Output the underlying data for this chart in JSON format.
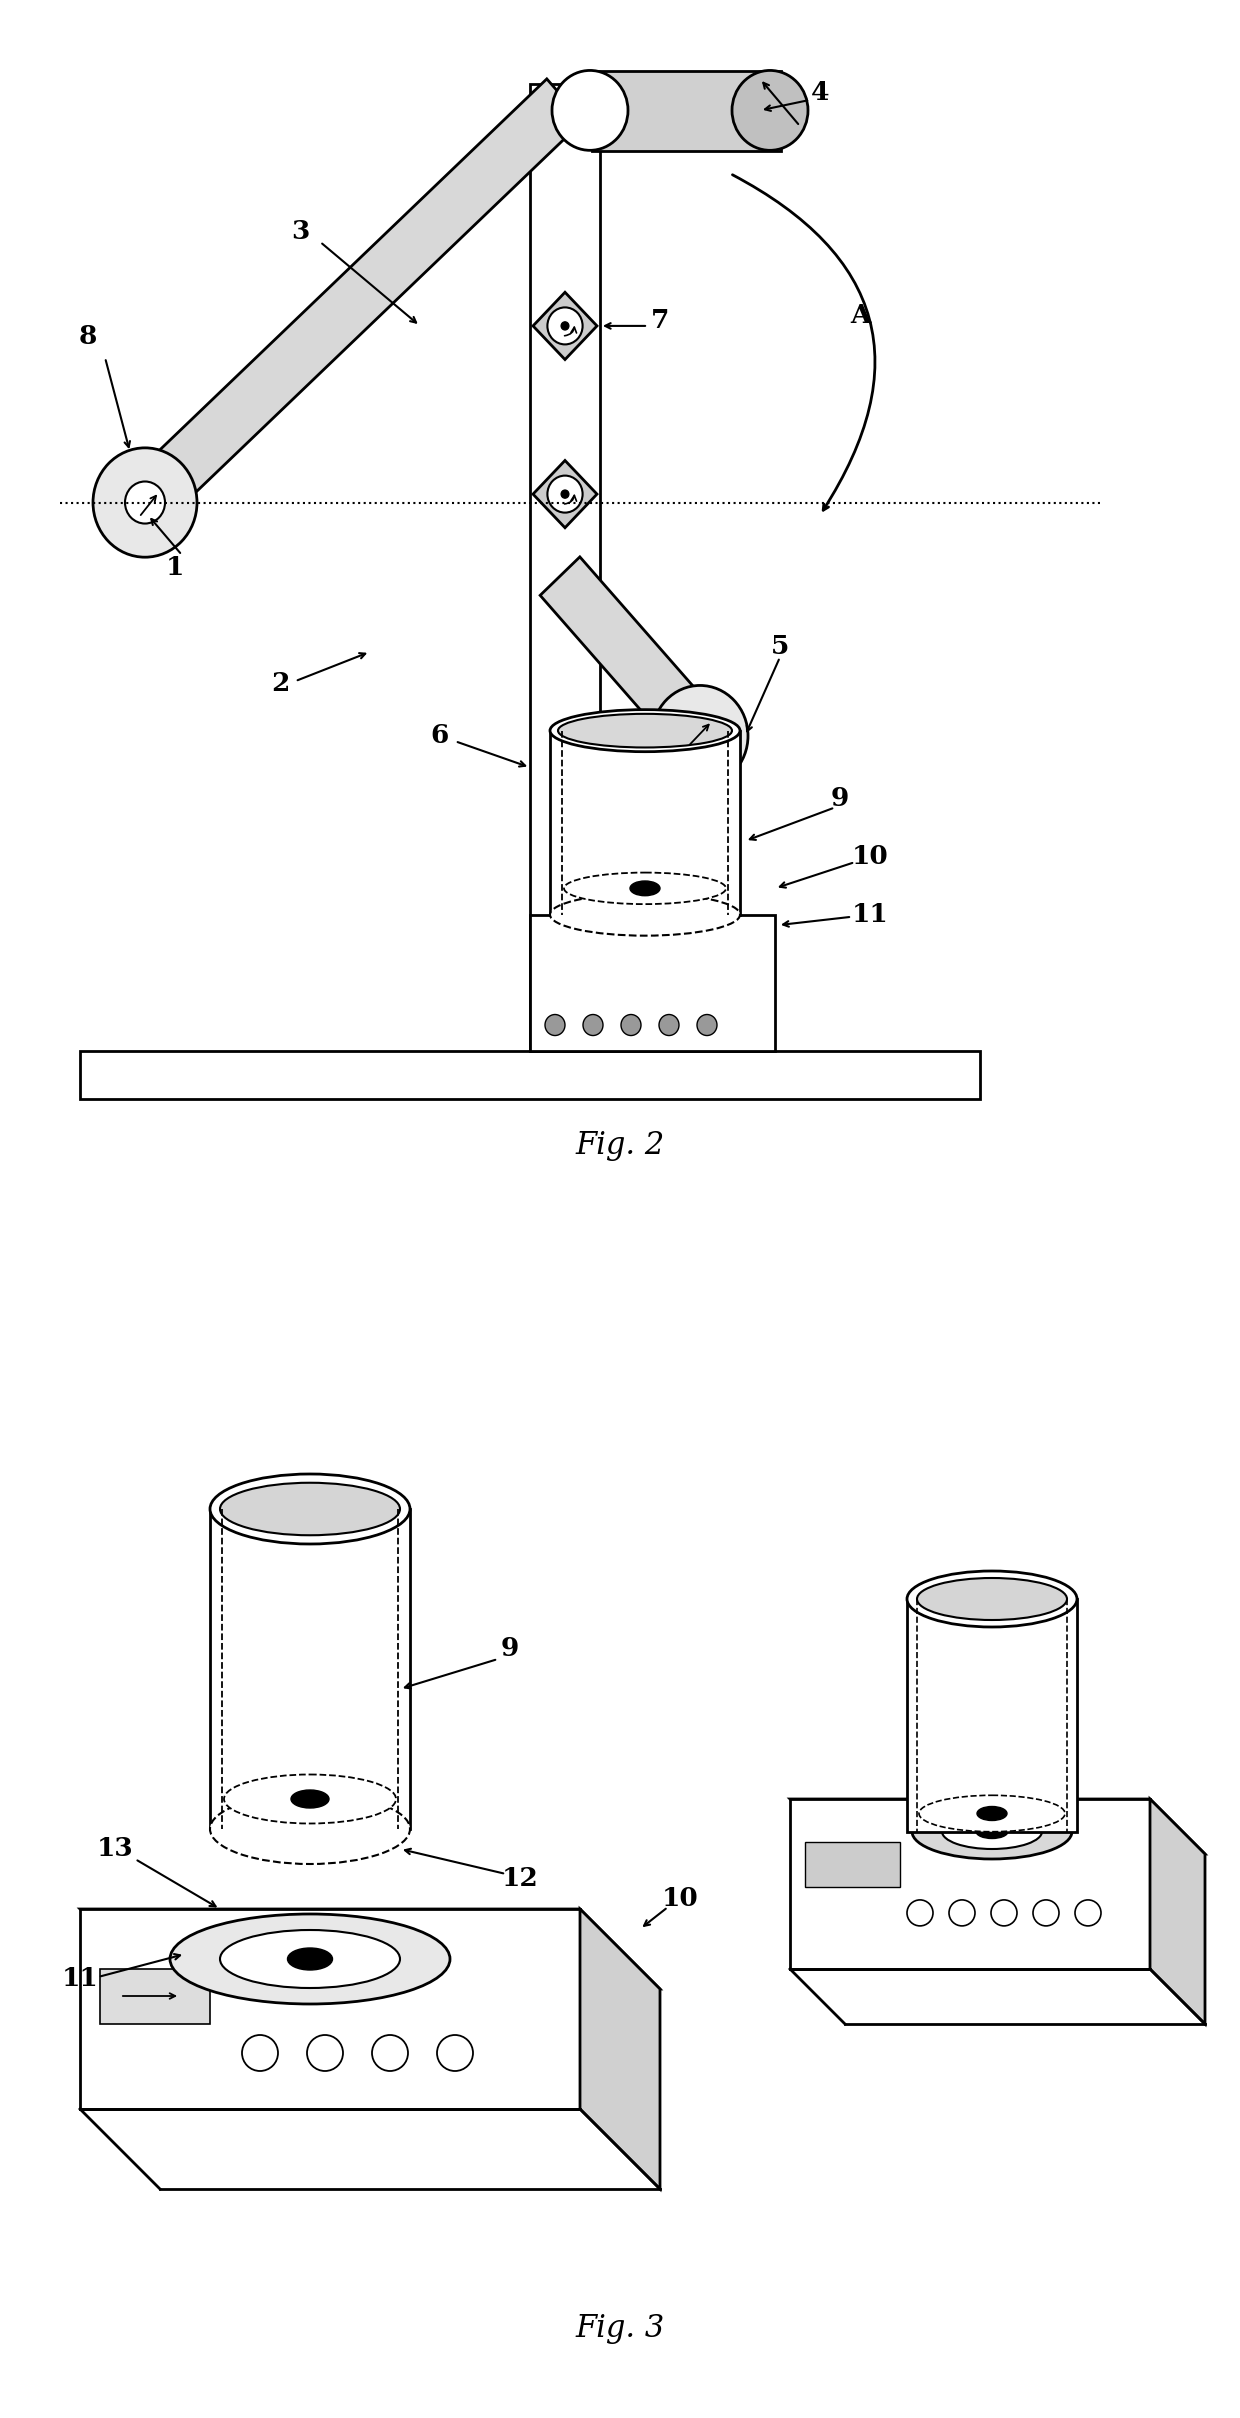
{
  "fig_width": 12.4,
  "fig_height": 24.18,
  "background_color": "#ffffff",
  "line_color": "#000000",
  "fig2_label": "Fig. 2",
  "fig3_label": "Fig. 3"
}
